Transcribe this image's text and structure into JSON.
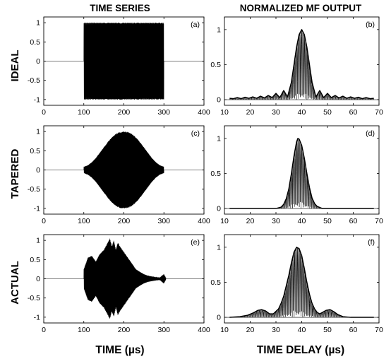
{
  "figure": {
    "column_titles": [
      "TIME SERIES",
      "NORMALIZED MF OUTPUT"
    ],
    "row_labels": [
      "IDEAL",
      "TAPERED",
      "ACTUAL"
    ],
    "x_axis_labels": [
      "TIME (µs)",
      "TIME DELAY (µs)"
    ]
  },
  "chart_data": [
    {
      "panel": "(a)",
      "type": "line",
      "xlim": [
        0,
        400
      ],
      "ylim": [
        -1.15,
        1.15
      ],
      "xticks": [
        0,
        100,
        200,
        300,
        400
      ],
      "yticks": [
        -1,
        -0.5,
        0,
        0.5,
        1
      ],
      "xticklabels": [
        "0",
        "100",
        "200",
        "300",
        "400"
      ],
      "yticklabels": [
        "-1",
        "-0.5",
        "0",
        "0.5",
        "1"
      ],
      "signal": "chirp",
      "pulse_start": 100,
      "pulse_end": 300,
      "envelope": {
        "x": [
          100,
          300
        ],
        "y": [
          1,
          1
        ]
      }
    },
    {
      "panel": "(b)",
      "type": "line",
      "xlim": [
        10,
        70
      ],
      "ylim": [
        -0.08,
        1.18
      ],
      "xticks": [
        10,
        20,
        30,
        40,
        50,
        60,
        70
      ],
      "yticks": [
        0,
        0.5,
        1
      ],
      "xticklabels": [
        "10",
        "20",
        "30",
        "40",
        "50",
        "60",
        "70"
      ],
      "yticklabels": [
        "0",
        "0.5",
        "1"
      ],
      "peak_at": 40,
      "signal": "mf_oscillation",
      "envelope": {
        "x": [
          12,
          13.5,
          15,
          16.5,
          18,
          19.5,
          21,
          22.5,
          24,
          25.5,
          27,
          28.5,
          30,
          31.5,
          33,
          34.5,
          36,
          37,
          38,
          39,
          40,
          41,
          42,
          43,
          44,
          45.5,
          47,
          48.5,
          50,
          51.5,
          53,
          54.5,
          56,
          57.5,
          59,
          60.5,
          62,
          63.5,
          65,
          66.5,
          68
        ],
        "y": [
          0.02,
          0.015,
          0.03,
          0.015,
          0.035,
          0.02,
          0.04,
          0.02,
          0.05,
          0.025,
          0.06,
          0.03,
          0.09,
          0.03,
          0.13,
          0.04,
          0.25,
          0.5,
          0.75,
          0.93,
          1.0,
          0.93,
          0.75,
          0.5,
          0.25,
          0.04,
          0.13,
          0.03,
          0.09,
          0.03,
          0.06,
          0.025,
          0.05,
          0.02,
          0.04,
          0.02,
          0.035,
          0.015,
          0.03,
          0.015,
          0.02
        ]
      }
    },
    {
      "panel": "(c)",
      "type": "line",
      "xlim": [
        0,
        400
      ],
      "ylim": [
        -1.15,
        1.15
      ],
      "xticks": [
        0,
        100,
        200,
        300,
        400
      ],
      "yticks": [
        -1,
        -0.5,
        0,
        0.5,
        1
      ],
      "xticklabels": [
        "0",
        "100",
        "200",
        "300",
        "400"
      ],
      "yticklabels": [
        "-1",
        "-0.5",
        "0",
        "0.5",
        "1"
      ],
      "signal": "chirp",
      "pulse_start": 100,
      "pulse_end": 300,
      "envelope": {
        "x": [
          100,
          110,
          120,
          130,
          140,
          150,
          160,
          170,
          180,
          190,
          200,
          210,
          220,
          230,
          240,
          250,
          260,
          270,
          280,
          290,
          300
        ],
        "y": [
          0.08,
          0.12,
          0.2,
          0.31,
          0.45,
          0.59,
          0.73,
          0.85,
          0.94,
          0.99,
          1.0,
          0.99,
          0.94,
          0.85,
          0.73,
          0.59,
          0.45,
          0.31,
          0.2,
          0.12,
          0.08
        ]
      }
    },
    {
      "panel": "(d)",
      "type": "line",
      "xlim": [
        10,
        70
      ],
      "ylim": [
        -0.08,
        1.18
      ],
      "xticks": [
        10,
        20,
        30,
        40,
        50,
        60,
        70
      ],
      "yticks": [
        0,
        0.5,
        1
      ],
      "xticklabels": [
        "10",
        "20",
        "30",
        "40",
        "50",
        "60",
        "70"
      ],
      "yticklabels": [
        "0",
        "0.5",
        "1"
      ],
      "peak_at": 38.5,
      "signal": "mf_oscillation",
      "envelope": {
        "x": [
          12,
          30,
          32,
          33,
          34,
          35,
          36,
          37,
          38,
          38.5,
          39,
          40,
          41,
          42,
          43,
          44,
          45,
          46,
          48,
          68
        ],
        "y": [
          0,
          0,
          0.02,
          0.06,
          0.14,
          0.28,
          0.5,
          0.75,
          0.95,
          1.0,
          0.99,
          0.9,
          0.72,
          0.5,
          0.3,
          0.15,
          0.07,
          0.03,
          0.0,
          0
        ]
      }
    },
    {
      "panel": "(e)",
      "type": "line",
      "xlim": [
        0,
        400
      ],
      "ylim": [
        -1.15,
        1.15
      ],
      "xticks": [
        0,
        100,
        200,
        300,
        400
      ],
      "yticks": [
        -1,
        -0.5,
        0,
        0.5,
        1
      ],
      "xticklabels": [
        "0",
        "100",
        "200",
        "300",
        "400"
      ],
      "yticklabels": [
        "-1",
        "-0.5",
        "0",
        "0.5",
        "1"
      ],
      "signal": "chirp",
      "pulse_start": 100,
      "pulse_end": 305,
      "envelope": {
        "x": [
          100,
          110,
          120,
          130,
          140,
          150,
          160,
          165,
          170,
          175,
          180,
          185,
          190,
          200,
          210,
          220,
          230,
          240,
          250,
          260,
          270,
          280,
          290,
          295,
          300,
          305
        ],
        "y": [
          0.25,
          0.55,
          0.6,
          0.45,
          0.65,
          0.75,
          0.95,
          1.05,
          0.85,
          1.0,
          0.75,
          0.95,
          0.85,
          0.7,
          0.55,
          0.4,
          0.25,
          0.18,
          0.12,
          0.08,
          0.06,
          0.04,
          0.03,
          0.08,
          0.12,
          0.02
        ]
      }
    },
    {
      "panel": "(f)",
      "type": "line",
      "xlim": [
        10,
        70
      ],
      "ylim": [
        -0.08,
        1.18
      ],
      "xticks": [
        10,
        20,
        30,
        40,
        50,
        60,
        70
      ],
      "yticks": [
        0,
        0.5,
        1
      ],
      "xticklabels": [
        "10",
        "20",
        "30",
        "40",
        "50",
        "60",
        "70"
      ],
      "yticklabels": [
        "0",
        "0.5",
        "1"
      ],
      "peak_at": 38,
      "signal": "mf_oscillation",
      "envelope": {
        "x": [
          12,
          16,
          19,
          21,
          23,
          24.5,
          26,
          27.5,
          29,
          31,
          32,
          33,
          34,
          35,
          36,
          37,
          38,
          39,
          40,
          41,
          42,
          43,
          44,
          45,
          46,
          47,
          48,
          49.5,
          51,
          52.5,
          54,
          56,
          59,
          68
        ],
        "y": [
          0.0,
          0.01,
          0.03,
          0.06,
          0.1,
          0.11,
          0.09,
          0.05,
          0.05,
          0.12,
          0.2,
          0.3,
          0.45,
          0.6,
          0.78,
          0.93,
          1.0,
          0.98,
          0.88,
          0.7,
          0.5,
          0.33,
          0.2,
          0.12,
          0.07,
          0.05,
          0.07,
          0.1,
          0.11,
          0.08,
          0.04,
          0.01,
          0.0,
          0
        ]
      }
    }
  ]
}
